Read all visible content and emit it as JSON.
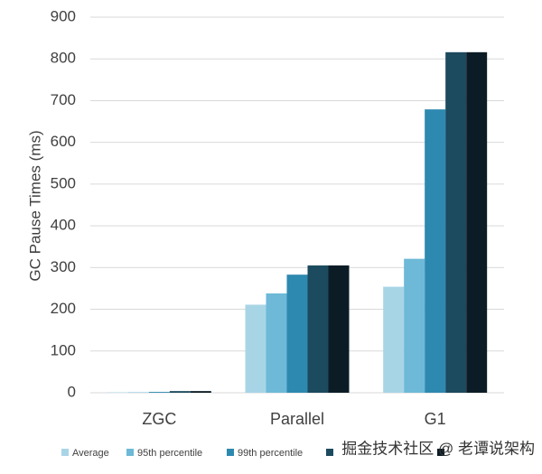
{
  "chart_data": {
    "type": "bar",
    "y_label": "GC Pause Times (ms)",
    "categories": [
      "ZGC",
      "Parallel",
      "G1"
    ],
    "series": [
      {
        "name": "Average",
        "color": "#a8d5e6",
        "values": [
          1,
          211,
          254
        ]
      },
      {
        "name": "95th percentile",
        "color": "#6db9d7",
        "values": [
          1,
          238,
          321
        ]
      },
      {
        "name": "99th percentile",
        "color": "#2e89b0",
        "values": [
          2,
          283,
          679
        ]
      },
      {
        "color": "#1c4a5e",
        "values": [
          4,
          305,
          816
        ]
      },
      {
        "color": "#0c1c26",
        "values": [
          4,
          305,
          816
        ]
      }
    ],
    "ylim": [
      0,
      900
    ],
    "yticks": [
      0,
      100,
      200,
      300,
      400,
      500,
      600,
      700,
      800,
      900
    ],
    "grid": true
  },
  "watermark": "掘金技术社区 @ 老谭说架构"
}
